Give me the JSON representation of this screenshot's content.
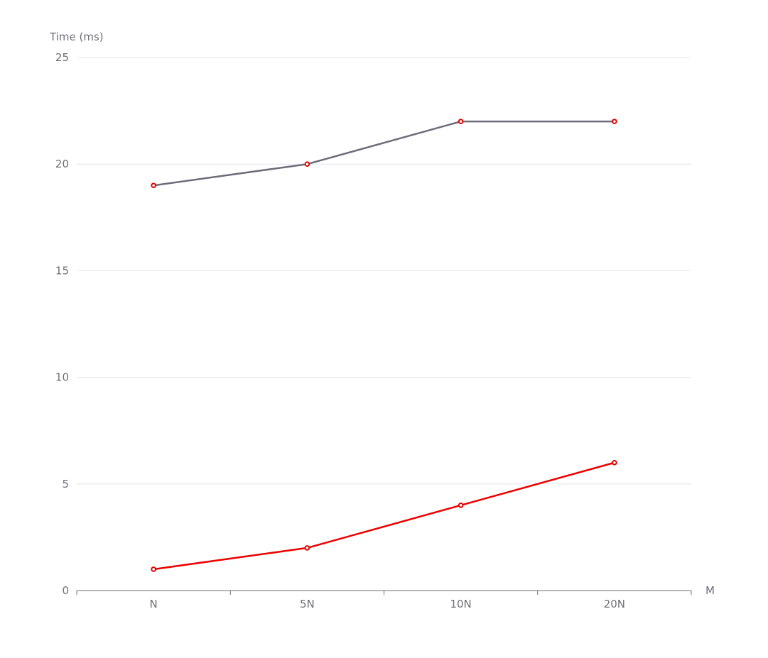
{
  "chart_data": {
    "type": "line",
    "ylabel": "Time (ms)",
    "xlabel": "M",
    "categories": [
      "N",
      "5N",
      "10N",
      "20N"
    ],
    "ylim": [
      0,
      25
    ],
    "yticks": [
      0,
      5,
      10,
      15,
      20,
      25
    ],
    "grid": true,
    "series": [
      {
        "values": [
          19,
          20,
          22,
          22
        ],
        "line_color": "#6e6b7a",
        "marker_color": "#e00000"
      },
      {
        "values": [
          1,
          2,
          4,
          6
        ],
        "line_color": "#ee0000",
        "marker_color": "#e00000"
      }
    ]
  },
  "colors": {
    "axis": "#6e7079",
    "grid": "#e0e6f1",
    "text": "#6e7079"
  }
}
